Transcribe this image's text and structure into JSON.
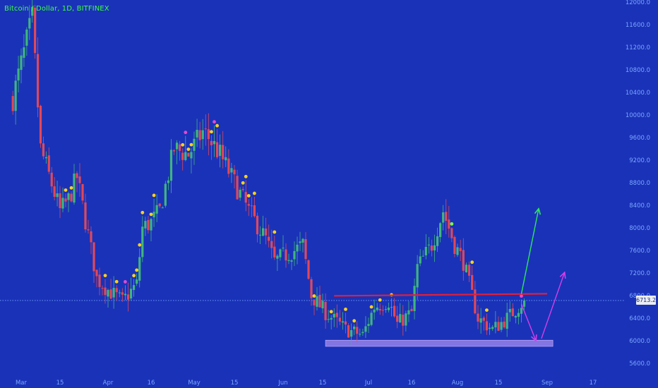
{
  "title": "Bitcoin / Dollar, 1D, BITFINEX",
  "colors": {
    "background": "#1a32b8",
    "up": "#3fb57e",
    "down": "#e0485a",
    "dot_yellow": "#ffd21a",
    "dot_magenta": "#e04ad0",
    "resistance": "#e0203a",
    "support_zone": "#a78cf0",
    "arrow_up": "#2ce85a",
    "arrow_magenta": "#d63ee8",
    "axis_text": "#7ba7ff",
    "dotted_line": "#7ba7ff"
  },
  "chart_data": {
    "type": "candlestick",
    "symbol": "Bitcoin / Dollar",
    "interval": "1D",
    "exchange": "BITFINEX",
    "current_price_label": "6713.2",
    "current_price": 6713.2,
    "y_ticks": [
      "12000.0",
      "11600.0",
      "11200.0",
      "10800.0",
      "10400.0",
      "10000.0",
      "9600.0",
      "9200.0",
      "8800.0",
      "8400.0",
      "8000.0",
      "7600.0",
      "7200.0",
      "6800.0",
      "6400.0",
      "6000.0",
      "5600.0"
    ],
    "x_ticks": [
      "Mar",
      "15",
      "Apr",
      "16",
      "May",
      "15",
      "Jun",
      "15",
      "Jul",
      "16",
      "Aug",
      "15",
      "Sep",
      "17"
    ],
    "ylim": [
      5400,
      12050
    ],
    "close_path": [
      [
        "2018-02-26",
        10300
      ],
      [
        "2018-03-05",
        11700
      ],
      [
        "2018-03-08",
        9400
      ],
      [
        "2018-03-15",
        8300
      ],
      [
        "2018-03-18",
        8500
      ],
      [
        "2018-03-21",
        8900
      ],
      [
        "2018-03-28",
        7100
      ],
      [
        "2018-04-01",
        6900
      ],
      [
        "2018-04-06",
        6700
      ],
      [
        "2018-04-11",
        7000
      ],
      [
        "2018-04-13",
        8000
      ],
      [
        "2018-04-16",
        8100
      ],
      [
        "2018-04-19",
        8300
      ],
      [
        "2018-04-24",
        9400
      ],
      [
        "2018-04-29",
        9300
      ],
      [
        "2018-05-04",
        9700
      ],
      [
        "2018-05-06",
        9600
      ],
      [
        "2018-05-10",
        9300
      ],
      [
        "2018-05-15",
        8800
      ],
      [
        "2018-05-20",
        8300
      ],
      [
        "2018-05-26",
        7800
      ],
      [
        "2018-05-29",
        7400
      ],
      [
        "2018-06-01",
        7500
      ],
      [
        "2018-06-05",
        7600
      ],
      [
        "2018-06-08",
        7700
      ],
      [
        "2018-06-11",
        6800
      ],
      [
        "2018-06-16",
        6500
      ],
      [
        "2018-06-23",
        6200
      ],
      [
        "2018-06-29",
        6100
      ],
      [
        "2018-07-03",
        6600
      ],
      [
        "2018-07-08",
        6700
      ],
      [
        "2018-07-11",
        6300
      ],
      [
        "2018-07-16",
        6500
      ],
      [
        "2018-07-18",
        7300
      ],
      [
        "2018-07-23",
        7700
      ],
      [
        "2018-07-27",
        8300
      ],
      [
        "2018-07-31",
        7700
      ],
      [
        "2018-08-03",
        7400
      ],
      [
        "2018-08-08",
        6400
      ],
      [
        "2018-08-13",
        6200
      ],
      [
        "2018-08-18",
        6400
      ],
      [
        "2018-08-21",
        6550
      ],
      [
        "2018-08-24",
        6713
      ]
    ],
    "annotations": [
      {
        "type": "resistance_line",
        "price": 6820,
        "from": "2018-06-19",
        "to": "2018-09-01"
      },
      {
        "type": "support_zone",
        "price_low": 5900,
        "price_high": 6010,
        "from": "2018-06-16",
        "to": "2018-09-03"
      },
      {
        "type": "arrow",
        "color": "green",
        "from": [
          "2018-08-23",
          6830
        ],
        "to": [
          "2018-08-29",
          8330
        ]
      },
      {
        "type": "arrow",
        "color": "magenta",
        "from": [
          "2018-08-23",
          6650
        ],
        "to": [
          "2018-08-28",
          6010
        ]
      },
      {
        "type": "arrow",
        "color": "magenta",
        "from": [
          "2018-08-30",
          6040
        ],
        "to": [
          "2018-09-07",
          7200
        ]
      }
    ],
    "current_price_line": "dotted"
  }
}
